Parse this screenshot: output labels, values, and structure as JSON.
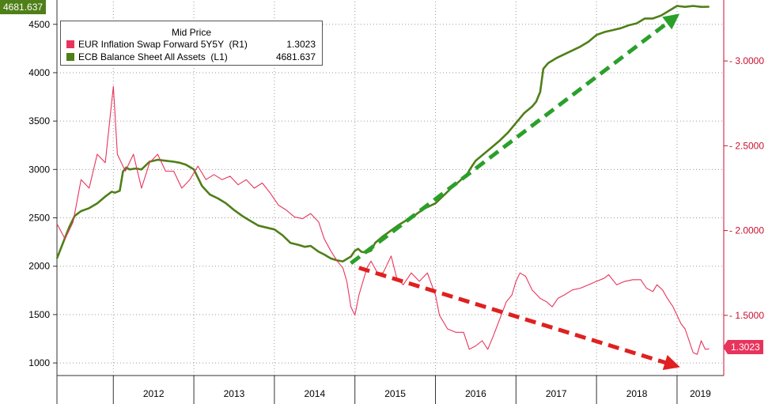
{
  "chart_data": {
    "type": "line",
    "legend": {
      "title": "Mid Price",
      "entries": [
        {
          "name": "EUR Inflation Swap Forward 5Y5Y  (R1)",
          "value": "1.3023",
          "color": "#e8345c"
        },
        {
          "name": "ECB Balance Sheet All Assets  (L1)",
          "value": "4681.637",
          "color": "#4f7f18"
        }
      ],
      "position": "top-left"
    },
    "last_values": {
      "left": "4681.637",
      "right": "1.3023"
    },
    "x_axis": {
      "range": [
        2011.3,
        2019.58
      ],
      "year_labels": [
        "2012",
        "2013",
        "2014",
        "2015",
        "2016",
        "2017",
        "2018",
        "2019"
      ]
    },
    "y_left": {
      "range": [
        870,
        4735
      ],
      "ticks": [
        "1000",
        "1500",
        "2000",
        "2500",
        "3000",
        "3500",
        "4000",
        "4500"
      ],
      "color": "#000000"
    },
    "y_right": {
      "range": [
        1.145,
        3.35
      ],
      "ticks": [
        "1.5000",
        "2.0000",
        "2.5000",
        "3.0000"
      ],
      "color": "#c8102e"
    },
    "grid": true,
    "series": [
      {
        "name": "ECB Balance Sheet All Assets",
        "axis": "left",
        "color": "#4f7f18",
        "points": [
          [
            2011.3,
            2080
          ],
          [
            2011.38,
            2250
          ],
          [
            2011.45,
            2400
          ],
          [
            2011.52,
            2520
          ],
          [
            2011.6,
            2570
          ],
          [
            2011.7,
            2600
          ],
          [
            2011.8,
            2650
          ],
          [
            2011.9,
            2720
          ],
          [
            2011.98,
            2770
          ],
          [
            2012.02,
            2760
          ],
          [
            2012.08,
            2780
          ],
          [
            2012.12,
            2980
          ],
          [
            2012.16,
            3020
          ],
          [
            2012.2,
            3000
          ],
          [
            2012.28,
            3010
          ],
          [
            2012.35,
            3000
          ],
          [
            2012.45,
            3080
          ],
          [
            2012.55,
            3100
          ],
          [
            2012.65,
            3090
          ],
          [
            2012.75,
            3080
          ],
          [
            2012.82,
            3070
          ],
          [
            2012.9,
            3050
          ],
          [
            2013.0,
            3000
          ],
          [
            2013.1,
            2830
          ],
          [
            2013.2,
            2740
          ],
          [
            2013.3,
            2700
          ],
          [
            2013.4,
            2650
          ],
          [
            2013.5,
            2580
          ],
          [
            2013.6,
            2520
          ],
          [
            2013.7,
            2470
          ],
          [
            2013.8,
            2420
          ],
          [
            2013.9,
            2400
          ],
          [
            2014.0,
            2380
          ],
          [
            2014.1,
            2320
          ],
          [
            2014.2,
            2240
          ],
          [
            2014.3,
            2220
          ],
          [
            2014.38,
            2200
          ],
          [
            2014.45,
            2210
          ],
          [
            2014.55,
            2150
          ],
          [
            2014.62,
            2120
          ],
          [
            2014.7,
            2080
          ],
          [
            2014.78,
            2060
          ],
          [
            2014.85,
            2050
          ],
          [
            2014.95,
            2100
          ],
          [
            2015.0,
            2160
          ],
          [
            2015.04,
            2180
          ],
          [
            2015.08,
            2150
          ],
          [
            2015.14,
            2140
          ],
          [
            2015.2,
            2160
          ],
          [
            2015.25,
            2240
          ],
          [
            2015.35,
            2310
          ],
          [
            2015.45,
            2370
          ],
          [
            2015.55,
            2430
          ],
          [
            2015.65,
            2480
          ],
          [
            2015.75,
            2530
          ],
          [
            2015.85,
            2590
          ],
          [
            2015.95,
            2630
          ],
          [
            2016.0,
            2650
          ],
          [
            2016.1,
            2730
          ],
          [
            2016.2,
            2810
          ],
          [
            2016.3,
            2880
          ],
          [
            2016.4,
            2960
          ],
          [
            2016.45,
            3030
          ],
          [
            2016.5,
            3090
          ],
          [
            2016.6,
            3160
          ],
          [
            2016.7,
            3230
          ],
          [
            2016.8,
            3300
          ],
          [
            2016.9,
            3380
          ],
          [
            2017.0,
            3480
          ],
          [
            2017.1,
            3580
          ],
          [
            2017.2,
            3650
          ],
          [
            2017.25,
            3700
          ],
          [
            2017.3,
            3800
          ],
          [
            2017.34,
            4040
          ],
          [
            2017.4,
            4100
          ],
          [
            2017.5,
            4150
          ],
          [
            2017.6,
            4190
          ],
          [
            2017.7,
            4230
          ],
          [
            2017.8,
            4270
          ],
          [
            2017.9,
            4320
          ],
          [
            2018.0,
            4390
          ],
          [
            2018.1,
            4420
          ],
          [
            2018.2,
            4440
          ],
          [
            2018.3,
            4460
          ],
          [
            2018.4,
            4490
          ],
          [
            2018.5,
            4510
          ],
          [
            2018.6,
            4560
          ],
          [
            2018.7,
            4560
          ],
          [
            2018.8,
            4590
          ],
          [
            2018.9,
            4640
          ],
          [
            2019.0,
            4690
          ],
          [
            2019.1,
            4680
          ],
          [
            2019.2,
            4690
          ],
          [
            2019.3,
            4680
          ],
          [
            2019.4,
            4682
          ]
        ]
      },
      {
        "name": "EUR Inflation Swap Forward 5Y5Y",
        "axis": "right",
        "color": "#e8345c",
        "points": [
          [
            2011.3,
            2.04
          ],
          [
            2011.4,
            1.95
          ],
          [
            2011.5,
            2.05
          ],
          [
            2011.6,
            2.3
          ],
          [
            2011.7,
            2.25
          ],
          [
            2011.8,
            2.45
          ],
          [
            2011.9,
            2.4
          ],
          [
            2012.0,
            2.85
          ],
          [
            2012.05,
            2.45
          ],
          [
            2012.15,
            2.35
          ],
          [
            2012.25,
            2.45
          ],
          [
            2012.35,
            2.25
          ],
          [
            2012.45,
            2.4
          ],
          [
            2012.55,
            2.45
          ],
          [
            2012.65,
            2.35
          ],
          [
            2012.75,
            2.35
          ],
          [
            2012.85,
            2.25
          ],
          [
            2012.95,
            2.3
          ],
          [
            2013.05,
            2.38
          ],
          [
            2013.15,
            2.3
          ],
          [
            2013.25,
            2.33
          ],
          [
            2013.35,
            2.3
          ],
          [
            2013.45,
            2.32
          ],
          [
            2013.55,
            2.27
          ],
          [
            2013.65,
            2.3
          ],
          [
            2013.75,
            2.25
          ],
          [
            2013.85,
            2.28
          ],
          [
            2013.95,
            2.22
          ],
          [
            2014.05,
            2.15
          ],
          [
            2014.15,
            2.12
          ],
          [
            2014.25,
            2.08
          ],
          [
            2014.35,
            2.07
          ],
          [
            2014.45,
            2.1
          ],
          [
            2014.55,
            2.05
          ],
          [
            2014.62,
            1.95
          ],
          [
            2014.7,
            1.88
          ],
          [
            2014.78,
            1.82
          ],
          [
            2014.85,
            1.78
          ],
          [
            2014.9,
            1.7
          ],
          [
            2014.95,
            1.55
          ],
          [
            2015.0,
            1.5
          ],
          [
            2015.05,
            1.62
          ],
          [
            2015.1,
            1.7
          ],
          [
            2015.15,
            1.78
          ],
          [
            2015.2,
            1.82
          ],
          [
            2015.28,
            1.75
          ],
          [
            2015.35,
            1.75
          ],
          [
            2015.45,
            1.85
          ],
          [
            2015.52,
            1.72
          ],
          [
            2015.6,
            1.68
          ],
          [
            2015.7,
            1.75
          ],
          [
            2015.8,
            1.7
          ],
          [
            2015.9,
            1.75
          ],
          [
            2016.0,
            1.62
          ],
          [
            2016.05,
            1.5
          ],
          [
            2016.15,
            1.42
          ],
          [
            2016.25,
            1.4
          ],
          [
            2016.35,
            1.4
          ],
          [
            2016.42,
            1.3
          ],
          [
            2016.5,
            1.32
          ],
          [
            2016.58,
            1.35
          ],
          [
            2016.65,
            1.3
          ],
          [
            2016.72,
            1.38
          ],
          [
            2016.8,
            1.48
          ],
          [
            2016.88,
            1.58
          ],
          [
            2016.95,
            1.62
          ],
          [
            2017.0,
            1.7
          ],
          [
            2017.05,
            1.75
          ],
          [
            2017.12,
            1.73
          ],
          [
            2017.2,
            1.65
          ],
          [
            2017.3,
            1.6
          ],
          [
            2017.38,
            1.58
          ],
          [
            2017.45,
            1.55
          ],
          [
            2017.52,
            1.6
          ],
          [
            2017.6,
            1.62
          ],
          [
            2017.7,
            1.65
          ],
          [
            2017.8,
            1.66
          ],
          [
            2017.9,
            1.68
          ],
          [
            2018.0,
            1.7
          ],
          [
            2018.1,
            1.72
          ],
          [
            2018.15,
            1.74
          ],
          [
            2018.25,
            1.68
          ],
          [
            2018.35,
            1.7
          ],
          [
            2018.45,
            1.71
          ],
          [
            2018.55,
            1.71
          ],
          [
            2018.62,
            1.66
          ],
          [
            2018.7,
            1.64
          ],
          [
            2018.75,
            1.68
          ],
          [
            2018.82,
            1.65
          ],
          [
            2018.88,
            1.6
          ],
          [
            2018.95,
            1.55
          ],
          [
            2019.0,
            1.5
          ],
          [
            2019.05,
            1.45
          ],
          [
            2019.1,
            1.42
          ],
          [
            2019.15,
            1.35
          ],
          [
            2019.2,
            1.28
          ],
          [
            2019.25,
            1.27
          ],
          [
            2019.3,
            1.35
          ],
          [
            2019.35,
            1.3
          ],
          [
            2019.4,
            1.302
          ]
        ]
      }
    ],
    "annotations": [
      {
        "kind": "dashed-arrow",
        "color": "#2aa02a",
        "from": [
          2014.95,
          2030
        ],
        "to": [
          2019.0,
          4590
        ],
        "axis": "left"
      },
      {
        "kind": "dashed-arrow",
        "color": "#e02020",
        "from": [
          2015.05,
          1.78
        ],
        "to": [
          2019.0,
          1.2
        ],
        "axis": "right"
      }
    ]
  }
}
